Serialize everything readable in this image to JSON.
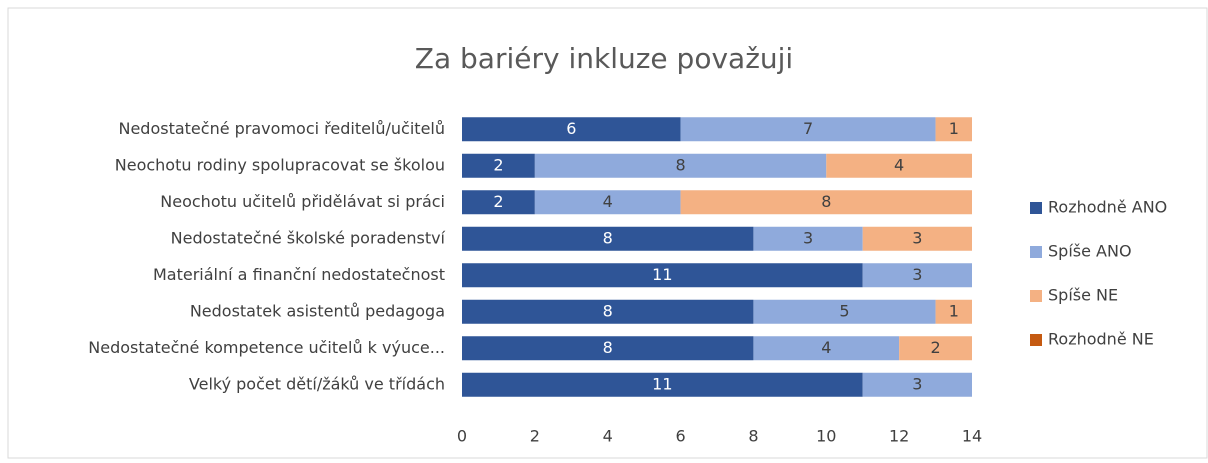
{
  "chart_data": {
    "type": "stacked-barh",
    "title": "Za bariéry inkluze považuji",
    "categories": [
      "Nedostatečné pravomoci ředitelů/učitelů",
      "Neochotu rodiny spolupracovat se školou",
      "Neochotu učitelů přidělávat si práci",
      "Nedostatečné školské poradenství",
      "Materiální a finanční nedostatečnost",
      "Nedostatek asistentů pedagoga",
      "Nedostatečné kompetence učitelů k výuce...",
      "Velký počet dětí/žáků ve třídách"
    ],
    "series": [
      {
        "name": "Rozhodně ANO",
        "color": "#2f5597",
        "values": [
          6,
          2,
          2,
          8,
          11,
          8,
          8,
          11
        ]
      },
      {
        "name": "Spíše ANO",
        "color": "#8faadc",
        "values": [
          7,
          8,
          4,
          3,
          3,
          5,
          4,
          3
        ]
      },
      {
        "name": "Spíše NE",
        "color": "#f4b183",
        "values": [
          1,
          4,
          8,
          3,
          0,
          1,
          2,
          0
        ]
      },
      {
        "name": "Rozhodně NE",
        "color": "#c55a11",
        "values": [
          0,
          0,
          0,
          0,
          0,
          0,
          0,
          0
        ]
      }
    ],
    "xlim": [
      0,
      14
    ],
    "xticks": [
      0,
      2,
      4,
      6,
      8,
      10,
      12,
      14
    ],
    "legend": "right"
  }
}
